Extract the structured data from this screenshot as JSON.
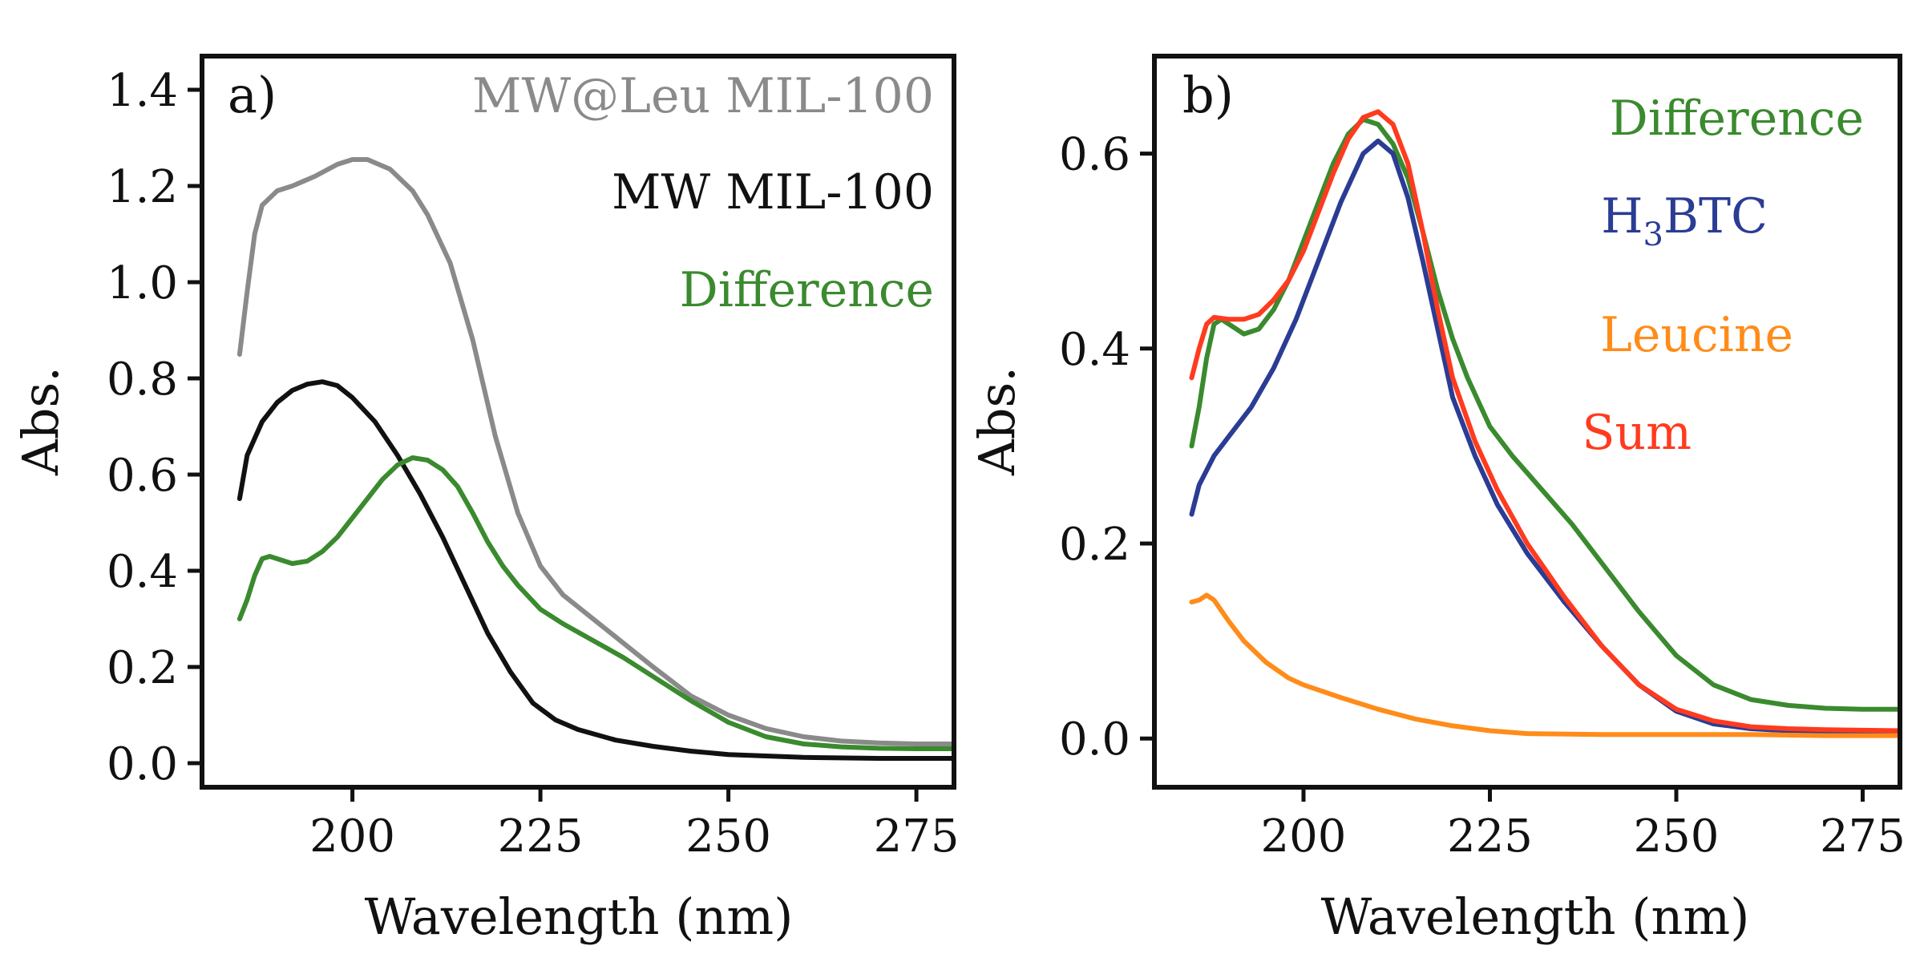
{
  "chart_data": [
    {
      "type": "line",
      "panel_label": "a)",
      "xlabel": "Wavelength (nm)",
      "ylabel": "Abs.",
      "xlim": [
        180,
        280
      ],
      "ylim": [
        -0.05,
        1.47
      ],
      "xticks": [
        200,
        225,
        250,
        275
      ],
      "xtick_labels": [
        "200",
        "225",
        "250",
        "275"
      ],
      "yticks": [
        0.0,
        0.2,
        0.4,
        0.6,
        0.8,
        1.0,
        1.2,
        1.4
      ],
      "ytick_labels": [
        "0.0",
        "0.2",
        "0.4",
        "0.6",
        "0.8",
        "1.0",
        "1.2",
        "1.4"
      ],
      "legend_placement": "top-right",
      "series": [
        {
          "name": "MW@Leu MIL-100",
          "color": "#8a8a8a",
          "x": [
            185,
            186,
            187,
            188,
            190,
            192,
            195,
            198,
            200,
            202,
            205,
            208,
            210,
            213,
            216,
            219,
            222,
            225,
            228,
            232,
            236,
            240,
            245,
            250,
            255,
            260,
            265,
            270,
            275,
            280
          ],
          "y": [
            0.85,
            0.98,
            1.1,
            1.16,
            1.19,
            1.2,
            1.22,
            1.245,
            1.255,
            1.255,
            1.235,
            1.19,
            1.14,
            1.04,
            0.88,
            0.68,
            0.52,
            0.41,
            0.35,
            0.3,
            0.25,
            0.2,
            0.14,
            0.1,
            0.072,
            0.055,
            0.046,
            0.042,
            0.04,
            0.04
          ]
        },
        {
          "name": "MW MIL-100",
          "color": "#111111",
          "x": [
            185,
            186,
            188,
            190,
            192,
            194,
            196,
            198,
            200,
            203,
            206,
            209,
            212,
            215,
            218,
            221,
            224,
            227,
            230,
            235,
            240,
            245,
            250,
            260,
            270,
            280
          ],
          "y": [
            0.55,
            0.64,
            0.71,
            0.75,
            0.775,
            0.788,
            0.793,
            0.785,
            0.76,
            0.71,
            0.64,
            0.56,
            0.47,
            0.37,
            0.27,
            0.19,
            0.125,
            0.09,
            0.07,
            0.048,
            0.035,
            0.025,
            0.018,
            0.012,
            0.01,
            0.01
          ]
        },
        {
          "name": "Difference",
          "color": "#3a8a2e",
          "x": [
            185,
            186,
            187,
            188,
            189,
            190,
            192,
            194,
            196,
            198,
            200,
            202,
            204,
            206,
            208,
            210,
            212,
            214,
            216,
            218,
            220,
            222,
            225,
            228,
            232,
            236,
            240,
            245,
            250,
            255,
            260,
            265,
            270,
            275,
            280
          ],
          "y": [
            0.3,
            0.34,
            0.39,
            0.425,
            0.43,
            0.425,
            0.415,
            0.42,
            0.44,
            0.47,
            0.51,
            0.55,
            0.59,
            0.62,
            0.635,
            0.63,
            0.61,
            0.575,
            0.52,
            0.46,
            0.41,
            0.37,
            0.32,
            0.29,
            0.255,
            0.22,
            0.18,
            0.13,
            0.085,
            0.055,
            0.04,
            0.034,
            0.031,
            0.03,
            0.03
          ]
        }
      ]
    },
    {
      "type": "line",
      "panel_label": "b)",
      "xlabel": "Wavelength (nm)",
      "ylabel": "Abs.",
      "xlim": [
        180,
        280
      ],
      "ylim": [
        -0.05,
        0.7
      ],
      "xticks": [
        200,
        225,
        250,
        275
      ],
      "xtick_labels": [
        "200",
        "225",
        "250",
        "275"
      ],
      "yticks": [
        0.0,
        0.2,
        0.4,
        0.6
      ],
      "ytick_labels": [
        "0.0",
        "0.2",
        "0.4",
        "0.6"
      ],
      "legend_placement": "top-right",
      "series": [
        {
          "name": "Difference",
          "color": "#3a8a2e",
          "x": [
            185,
            186,
            187,
            188,
            189,
            190,
            192,
            194,
            196,
            198,
            200,
            202,
            204,
            206,
            208,
            210,
            212,
            214,
            216,
            218,
            220,
            222,
            225,
            228,
            232,
            236,
            240,
            245,
            250,
            255,
            260,
            265,
            270,
            275,
            280
          ],
          "y": [
            0.3,
            0.34,
            0.39,
            0.425,
            0.43,
            0.425,
            0.415,
            0.42,
            0.44,
            0.47,
            0.51,
            0.55,
            0.59,
            0.62,
            0.635,
            0.63,
            0.61,
            0.575,
            0.52,
            0.46,
            0.41,
            0.37,
            0.32,
            0.29,
            0.255,
            0.22,
            0.18,
            0.13,
            0.085,
            0.055,
            0.04,
            0.034,
            0.031,
            0.03,
            0.03
          ]
        },
        {
          "name": "H3BTC",
          "label_main": "H",
          "label_sub": "3",
          "label_rest": "BTC",
          "color": "#2a3c94",
          "x": [
            185,
            186,
            188,
            190,
            193,
            196,
            199,
            202,
            205,
            208,
            210,
            212,
            214,
            216,
            218,
            220,
            223,
            226,
            230,
            235,
            240,
            245,
            250,
            255,
            260,
            265,
            270,
            280
          ],
          "y": [
            0.23,
            0.26,
            0.29,
            0.31,
            0.34,
            0.38,
            0.43,
            0.49,
            0.55,
            0.6,
            0.613,
            0.6,
            0.555,
            0.49,
            0.42,
            0.35,
            0.29,
            0.24,
            0.19,
            0.14,
            0.095,
            0.055,
            0.028,
            0.015,
            0.01,
            0.008,
            0.007,
            0.006
          ]
        },
        {
          "name": "Leucine",
          "color": "#ff8c1a",
          "x": [
            185,
            186,
            187,
            188,
            190,
            192,
            195,
            198,
            200,
            205,
            210,
            215,
            220,
            225,
            230,
            240,
            250,
            260,
            270,
            280
          ],
          "y": [
            0.14,
            0.142,
            0.147,
            0.142,
            0.12,
            0.1,
            0.078,
            0.062,
            0.055,
            0.042,
            0.03,
            0.02,
            0.013,
            0.008,
            0.005,
            0.004,
            0.004,
            0.004,
            0.003,
            0.003
          ]
        },
        {
          "name": "Sum",
          "color": "#ff3b1f",
          "x": [
            185,
            186,
            187,
            188,
            190,
            192,
            194,
            196,
            198,
            200,
            202,
            204,
            206,
            208,
            210,
            212,
            214,
            216,
            218,
            220,
            223,
            226,
            230,
            235,
            240,
            245,
            250,
            255,
            260,
            265,
            270,
            280
          ],
          "y": [
            0.37,
            0.4,
            0.425,
            0.432,
            0.43,
            0.43,
            0.435,
            0.45,
            0.47,
            0.5,
            0.54,
            0.58,
            0.615,
            0.637,
            0.643,
            0.63,
            0.59,
            0.52,
            0.44,
            0.37,
            0.305,
            0.255,
            0.2,
            0.145,
            0.095,
            0.055,
            0.03,
            0.018,
            0.012,
            0.01,
            0.009,
            0.008
          ]
        }
      ]
    }
  ]
}
